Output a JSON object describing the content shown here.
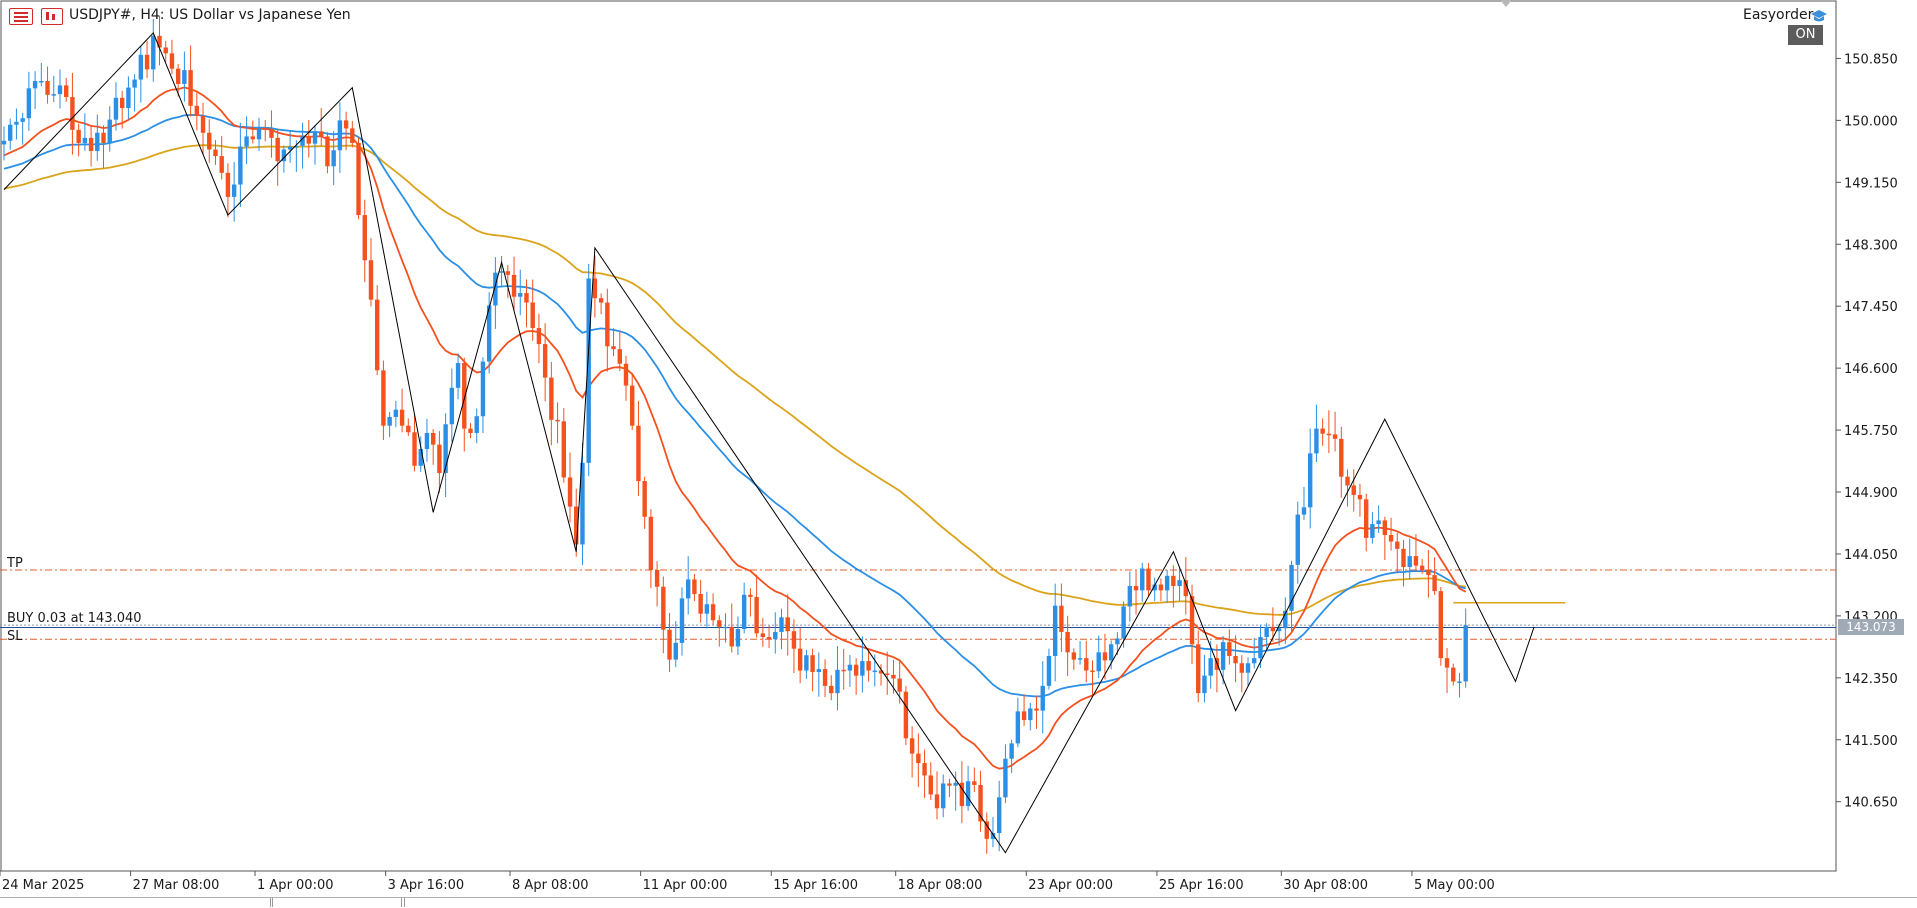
{
  "header": {
    "symbol_title": "USDJPY#, H4: US Dollar vs Japanese Yen",
    "ea_name": "Easyorder",
    "ea_status": "ON",
    "menu_icon": "menu-list-icon",
    "chart_icon": "chart-type-icon",
    "ea_icon": "graduation-cap-icon"
  },
  "levels": {
    "tp_label": "TP",
    "sl_label": "SL",
    "buy_label": "BUY 0.03 at 143.040",
    "current_price": "143.073"
  },
  "colors": {
    "bull": "#2b8fe6",
    "bear": "#f4511e",
    "ema_fast": "#f4511e",
    "ema_mid": "#2b8fe6",
    "ema_slow": "#dba31a",
    "zigzag": "#000000",
    "tp_sl_line": "#e06030",
    "buy_line": "#1f4f9a"
  },
  "chart_data": {
    "type": "candlestick",
    "symbol": "USDJPY#",
    "timeframe": "H4",
    "ylim": [
      139.85,
      151.35
    ],
    "y_ticks": [
      "150.850",
      "150.000",
      "149.150",
      "148.300",
      "147.450",
      "146.600",
      "145.750",
      "144.900",
      "144.050",
      "143.200",
      "142.350",
      "141.500",
      "140.650"
    ],
    "x_ticks": [
      "24 Mar 2025",
      "27 Mar 08:00",
      "1 Apr 00:00",
      "3 Apr 16:00",
      "8 Apr 08:00",
      "11 Apr 00:00",
      "15 Apr 16:00",
      "18 Apr 08:00",
      "23 Apr 00:00",
      "25 Apr 16:00",
      "30 Apr 08:00",
      "5 May 00:00"
    ],
    "x_tick_bar_index": [
      0,
      21,
      41,
      62,
      82,
      103,
      124,
      144,
      165,
      186,
      206,
      227
    ],
    "tp_price": 143.83,
    "sl_price": 142.88,
    "buy_price": 143.04,
    "current_price": 143.073,
    "pending_order_price": 143.38,
    "zigzag_pivots": [
      {
        "bar": 0,
        "price": 149.05
      },
      {
        "bar": 24,
        "price": 151.2
      },
      {
        "bar": 36,
        "price": 148.7
      },
      {
        "bar": 56,
        "price": 150.45
      },
      {
        "bar": 69,
        "price": 144.62
      },
      {
        "bar": 80,
        "price": 148.05
      },
      {
        "bar": 92,
        "price": 144.08
      },
      {
        "bar": 95,
        "price": 148.25
      },
      {
        "bar": 161,
        "price": 139.95
      },
      {
        "bar": 188,
        "price": 144.08
      },
      {
        "bar": 198,
        "price": 141.9
      },
      {
        "bar": 222,
        "price": 145.9
      },
      {
        "bar": 243,
        "price": 142.3
      },
      {
        "bar": 246,
        "price": 143.05
      }
    ],
    "closes": [
      149.72,
      149.94,
      149.98,
      150.03,
      150.44,
      150.54,
      150.54,
      150.35,
      150.36,
      150.48,
      150.32,
      149.87,
      149.69,
      149.76,
      149.58,
      149.83,
      149.69,
      150.01,
      150.31,
      150.17,
      150.45,
      150.56,
      150.9,
      150.7,
      151.16,
      151.0,
      150.92,
      150.71,
      150.5,
      150.69,
      150.2,
      150.06,
      149.83,
      149.6,
      149.51,
      149.28,
      148.95,
      149.12,
      149.64,
      149.78,
      149.74,
      149.89,
      149.88,
      149.76,
      149.44,
      149.6,
      149.64,
      149.65,
      149.78,
      149.68,
      149.85,
      149.78,
      149.37,
      149.59,
      150.0,
      149.89,
      149.69,
      148.7,
      148.08,
      147.54,
      146.57,
      145.81,
      145.93,
      146.03,
      145.81,
      145.72,
      145.26,
      145.49,
      145.71,
      145.55,
      145.16,
      145.83,
      146.33,
      146.67,
      145.77,
      145.71,
      145.94,
      146.69,
      147.46,
      147.91,
      147.93,
      147.88,
      147.58,
      147.63,
      147.5,
      147.15,
      146.93,
      146.47,
      145.89,
      145.87,
      145.1,
      144.7,
      144.18,
      145.3,
      147.83,
      147.56,
      147.5,
      146.9,
      146.86,
      146.66,
      146.36,
      145.81,
      145.05,
      144.56,
      143.83,
      143.6,
      143.01,
      142.6,
      142.83,
      143.44,
      143.7,
      143.5,
      143.23,
      143.36,
      143.14,
      143.05,
      143.05,
      142.78,
      143.02,
      143.49,
      143.46,
      142.96,
      142.91,
      142.88,
      142.98,
      143.18,
      142.99,
      142.75,
      142.45,
      142.66,
      142.43,
      142.47,
      142.24,
      142.14,
      142.46,
      142.45,
      142.53,
      142.38,
      142.58,
      142.45,
      142.45,
      142.41,
      142.39,
      142.34,
      142.16,
      141.52,
      141.31,
      141.18,
      141.01,
      140.75,
      140.56,
      140.9,
      140.87,
      140.91,
      140.59,
      140.93,
      140.88,
      140.38,
      140.14,
      140.22,
      140.71,
      141.24,
      141.45,
      141.89,
      141.77,
      141.93,
      141.9,
      142.24,
      142.65,
      143.34,
      142.98,
      142.7,
      142.6,
      142.62,
      142.45,
      142.44,
      142.7,
      142.59,
      142.81,
      142.89,
      143.33,
      143.61,
      143.55,
      143.85,
      143.55,
      143.63,
      143.55,
      143.75,
      143.61,
      143.69,
      143.47,
      142.81,
      142.14,
      142.38,
      142.62,
      142.46,
      142.84,
      142.65,
      142.55,
      142.42,
      142.55,
      142.62,
      142.91,
      143.05,
      142.99,
      143.03,
      143.27,
      143.9,
      144.59,
      144.69,
      145.43,
      145.77,
      145.7,
      145.69,
      145.63,
      145.11,
      144.99,
      144.86,
      144.8,
      144.27,
      144.46,
      144.51,
      144.31,
      144.22,
      144.12,
      143.87,
      144.02,
      143.89,
      143.83,
      143.76,
      143.54,
      142.62,
      142.49,
      142.3,
      142.3,
      143.07
    ]
  }
}
